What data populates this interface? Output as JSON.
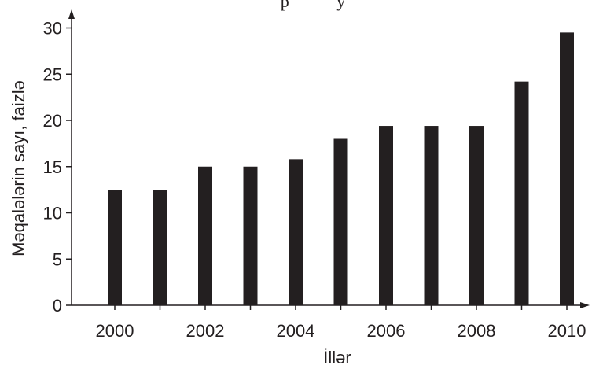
{
  "chart_data": {
    "type": "bar",
    "title": "",
    "top_text": "p           y",
    "xlabel": "İllər",
    "ylabel": "Məqalələrin sayı, faizlə",
    "categories": [
      "2000",
      "2001",
      "2002",
      "2003",
      "2004",
      "2005",
      "2006",
      "2007",
      "2008",
      "2009",
      "2010"
    ],
    "values": [
      12.5,
      12.5,
      15,
      15,
      15.8,
      18,
      19.4,
      19.4,
      19.4,
      24.2,
      29.5
    ],
    "x_tick_labels": [
      "2000",
      "2002",
      "2004",
      "2006",
      "2008",
      "2010"
    ],
    "y_ticks": [
      0,
      5,
      10,
      15,
      20,
      25,
      30
    ],
    "ylim": [
      0,
      32
    ],
    "grid": false,
    "legend": "none",
    "bar_color": "#231f20"
  }
}
